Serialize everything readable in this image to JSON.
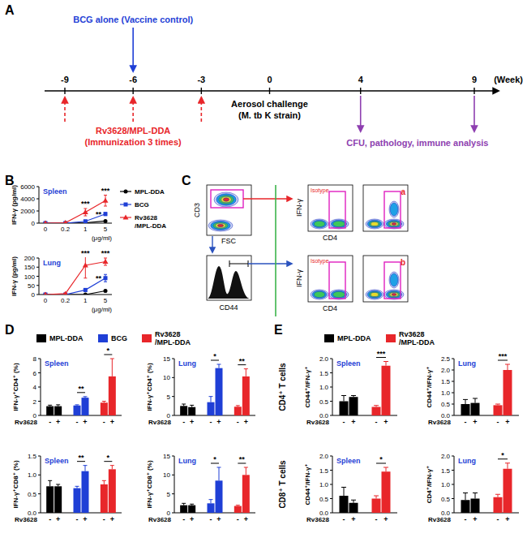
{
  "panel_labels": [
    "A",
    "B",
    "C",
    "D",
    "E"
  ],
  "timeline": {
    "ticks": [
      -9,
      -6,
      -3,
      0,
      4,
      9
    ],
    "unit": "(Week)",
    "bcg_label": "BCG alone (Vaccine control)",
    "bcg_week": -6,
    "immunization_label": [
      "Rv3628/MPL-DDA",
      "(Immunization 3 times)"
    ],
    "immunization_weeks": [
      -9,
      -6,
      -3
    ],
    "challenge_label": [
      "Aerosol challenge",
      "(M. tb K strain)"
    ],
    "challenge_week": 0,
    "analysis_label": "CFU, pathology, immune analysis",
    "analysis_weeks": [
      4,
      9
    ]
  },
  "flow": {
    "plot1_y": "CD3",
    "plot1_x": "FSC",
    "histogram_x": "CD44",
    "y_axis": "IFN-γ",
    "x_axis": "CD4",
    "isotype": "Isotype",
    "gates": [
      "a",
      "b"
    ]
  },
  "row_labels": [
    "CD4⁺ T cells",
    "CD8⁺ T cells"
  ],
  "chart_data": [
    {
      "type": "line",
      "title": "Spleen",
      "y_label": "IFN-γ (pg/ml)",
      "x_label": "(μg/ml)",
      "categories": [
        "0",
        "0.2",
        "1",
        "5"
      ],
      "ylim": [
        0,
        6000
      ],
      "yticks": [
        0,
        2000,
        4000,
        6000
      ],
      "legend": "right",
      "series": [
        {
          "name": "MPL-DDA",
          "color": "#000000",
          "marker": "circle",
          "values": [
            0,
            0,
            60,
            350
          ],
          "errors": [
            0,
            0,
            20,
            80
          ]
        },
        {
          "name": "BCG",
          "color": "#1f3fd6",
          "marker": "square",
          "values": [
            0,
            0,
            300,
            1500
          ],
          "errors": [
            0,
            0,
            100,
            250
          ]
        },
        {
          "name": "Rv3628/MPL-DDA",
          "color": "#e8262a",
          "marker": "triangle",
          "values": [
            0,
            60,
            1800,
            3700
          ],
          "errors": [
            0,
            20,
            600,
            900
          ]
        }
      ],
      "annotations": [
        {
          "text": "***",
          "series": 2,
          "index": 2
        },
        {
          "text": "***",
          "series": 2,
          "index": 3
        },
        {
          "text": "**",
          "series": 1,
          "index": 3
        }
      ]
    },
    {
      "type": "line",
      "title": "Lung",
      "y_label": "IFN-γ (pg/ml)",
      "x_label": "(μg/ml)",
      "categories": [
        "0",
        "0.2",
        "1",
        "5"
      ],
      "ylim": [
        0,
        200
      ],
      "yticks": [
        0,
        50,
        100,
        150,
        200
      ],
      "series": [
        {
          "color": "#000000",
          "marker": "circle",
          "values": [
            0,
            0,
            0,
            20
          ],
          "errors": [
            0,
            0,
            0,
            5
          ]
        },
        {
          "color": "#1f3fd6",
          "marker": "square",
          "values": [
            0,
            0,
            25,
            90
          ],
          "errors": [
            0,
            0,
            8,
            20
          ]
        },
        {
          "color": "#e8262a",
          "marker": "triangle",
          "values": [
            0,
            5,
            160,
            180
          ],
          "errors": [
            0,
            2,
            70,
            20
          ]
        }
      ],
      "annotations": [
        {
          "text": "***",
          "series": 2,
          "index": 2
        },
        {
          "text": "***",
          "series": 2,
          "index": 3
        },
        {
          "text": "**",
          "series": 1,
          "index": 3
        }
      ]
    },
    {
      "type": "bar",
      "title": "Spleen",
      "y_label": "IFN-γ⁺CD4⁺ (%)",
      "x_label": "Rv3628",
      "categories": [
        "-",
        "+"
      ],
      "ylim": [
        0,
        8
      ],
      "yticks": [
        0,
        2,
        4,
        6,
        8
      ],
      "legend": "top",
      "series": [
        {
          "name": "MPL-DDA",
          "color": "#000000",
          "values": [
            1.3,
            1.3
          ],
          "errors": [
            0.15,
            0.2
          ]
        },
        {
          "name": "BCG",
          "color": "#1f3fd6",
          "values": [
            1.4,
            2.5
          ],
          "errors": [
            0.1,
            0.15
          ]
        },
        {
          "name": "Rv3628/MPL-DDA",
          "color": "#e8262a",
          "values": [
            1.8,
            5.5
          ],
          "errors": [
            0.2,
            2.5
          ]
        }
      ],
      "annotations": [
        {
          "text": "**",
          "series": 1
        },
        {
          "text": "*",
          "series": 2
        }
      ]
    },
    {
      "type": "bar",
      "title": "Lung",
      "y_label": "IFN-γ⁺CD4⁺ (%)",
      "x_label": "Rv3628",
      "categories": [
        "-",
        "+"
      ],
      "ylim": [
        0,
        15
      ],
      "yticks": [
        0,
        5,
        10,
        15
      ],
      "series": [
        {
          "color": "#000000",
          "values": [
            2.5,
            2.2
          ],
          "errors": [
            0.5,
            0.5
          ]
        },
        {
          "color": "#1f3fd6",
          "values": [
            3.5,
            12.5
          ],
          "errors": [
            1.5,
            1
          ]
        },
        {
          "color": "#e8262a",
          "values": [
            2.3,
            10.3
          ],
          "errors": [
            0.3,
            2
          ]
        }
      ],
      "annotations": [
        {
          "text": "*",
          "series": 1
        },
        {
          "text": "**",
          "series": 2
        }
      ]
    },
    {
      "type": "bar",
      "title": "Spleen",
      "y_label": "IFN-γ⁺CD8⁺ (%)",
      "x_label": "Rv3628",
      "categories": [
        "-",
        "+"
      ],
      "ylim": [
        0,
        1.5
      ],
      "yticks": [
        {
          "value": 0,
          "label": "0.0"
        },
        0.5,
        {
          "value": 1,
          "label": "1.0"
        },
        1.5
      ],
      "series": [
        {
          "color": "#000000",
          "values": [
            0.7,
            0.7
          ],
          "errors": [
            0.15,
            0.05
          ]
        },
        {
          "color": "#1f3fd6",
          "values": [
            0.65,
            1.1
          ],
          "errors": [
            0.05,
            0.15
          ]
        },
        {
          "color": "#e8262a",
          "values": [
            0.75,
            1.15
          ],
          "errors": [
            0.1,
            0.1
          ]
        }
      ],
      "annotations": [
        {
          "text": "**",
          "series": 1
        },
        {
          "text": "*",
          "series": 2
        }
      ]
    },
    {
      "type": "bar",
      "title": "Lung",
      "y_label": "IFN-γ⁺CD8⁺ (%)",
      "x_label": "Rv3628",
      "categories": [
        "-",
        "+"
      ],
      "ylim": [
        0,
        15
      ],
      "yticks": [
        0,
        5,
        10,
        15
      ],
      "series": [
        {
          "color": "#000000",
          "values": [
            2,
            2
          ],
          "errors": [
            0.5,
            0.3
          ]
        },
        {
          "color": "#1f3fd6",
          "values": [
            2.5,
            8.5
          ],
          "errors": [
            1,
            3.5
          ]
        },
        {
          "color": "#e8262a",
          "values": [
            1.8,
            10
          ],
          "errors": [
            0.2,
            2
          ]
        }
      ],
      "annotations": [
        {
          "text": "*",
          "series": 1
        },
        {
          "text": "**",
          "series": 2
        }
      ]
    },
    {
      "type": "bar",
      "title": "Spleen",
      "y_label": "CD44⁺/IFN-γ⁺",
      "x_label": "Rv3628",
      "categories": [
        "-",
        "+"
      ],
      "ylim": [
        0,
        2
      ],
      "yticks": [
        {
          "value": 0,
          "label": "0.0"
        },
        0.5,
        {
          "value": 1,
          "label": "1.0"
        },
        1.5,
        {
          "value": 2,
          "label": "2.0"
        }
      ],
      "legend": "top",
      "series": [
        {
          "name": "MPL-DDA",
          "color": "#000000",
          "values": [
            0.5,
            0.65
          ],
          "errors": [
            0.2,
            0.05
          ]
        },
        {
          "name": "Rv3628/MPL-DDA",
          "color": "#e8262a",
          "values": [
            0.3,
            1.75
          ],
          "errors": [
            0.05,
            0.15
          ]
        }
      ],
      "annotations": [
        {
          "text": "***",
          "series": 1
        }
      ]
    },
    {
      "type": "bar",
      "title": "Lung",
      "y_label": "CD44⁺/IFN-γ⁺",
      "x_label": "Rv3628",
      "categories": [
        "-",
        "+"
      ],
      "ylim": [
        0,
        2.5
      ],
      "yticks": [
        {
          "value": 0,
          "label": "0.0"
        },
        0.5,
        {
          "value": 1,
          "label": "1.0"
        },
        1.5,
        {
          "value": 2,
          "label": "2.0"
        },
        2.5
      ],
      "series": [
        {
          "color": "#000000",
          "values": [
            0.5,
            0.55
          ],
          "errors": [
            0.2,
            0.2
          ]
        },
        {
          "color": "#e8262a",
          "values": [
            0.45,
            2.0
          ],
          "errors": [
            0.05,
            0.25
          ]
        }
      ],
      "annotations": [
        {
          "text": "***",
          "series": 1
        }
      ]
    },
    {
      "type": "bar",
      "title": "Spleen",
      "y_label": "CD44⁺/IFN-γ⁺",
      "x_label": "Rv3628",
      "categories": [
        "-",
        "+"
      ],
      "ylim": [
        0,
        2
      ],
      "yticks": [
        {
          "value": 0,
          "label": "0.0"
        },
        0.5,
        {
          "value": 1,
          "label": "1.0"
        },
        1.5,
        {
          "value": 2,
          "label": "2.0"
        }
      ],
      "series": [
        {
          "color": "#000000",
          "values": [
            0.6,
            0.35
          ],
          "errors": [
            0.3,
            0.1
          ]
        },
        {
          "color": "#e8262a",
          "values": [
            0.5,
            1.45
          ],
          "errors": [
            0.1,
            0.15
          ]
        }
      ],
      "annotations": [
        {
          "text": "*",
          "series": 1
        }
      ]
    },
    {
      "type": "bar",
      "title": "Lung",
      "y_label": "CD4⁺/IFN-γ⁺",
      "x_label": "Rv3628",
      "categories": [
        "-",
        "+"
      ],
      "ylim": [
        0,
        2
      ],
      "yticks": [
        {
          "value": 0,
          "label": "0.0"
        },
        0.5,
        {
          "value": 1,
          "label": "1.0"
        },
        1.5,
        {
          "value": 2,
          "label": "2.0"
        }
      ],
      "series": [
        {
          "color": "#000000",
          "values": [
            0.45,
            0.5
          ],
          "errors": [
            0.25,
            0.2
          ]
        },
        {
          "color": "#e8262a",
          "values": [
            0.55,
            1.55
          ],
          "errors": [
            0.1,
            0.2
          ]
        }
      ],
      "annotations": [
        {
          "text": "*",
          "series": 1
        }
      ]
    }
  ]
}
